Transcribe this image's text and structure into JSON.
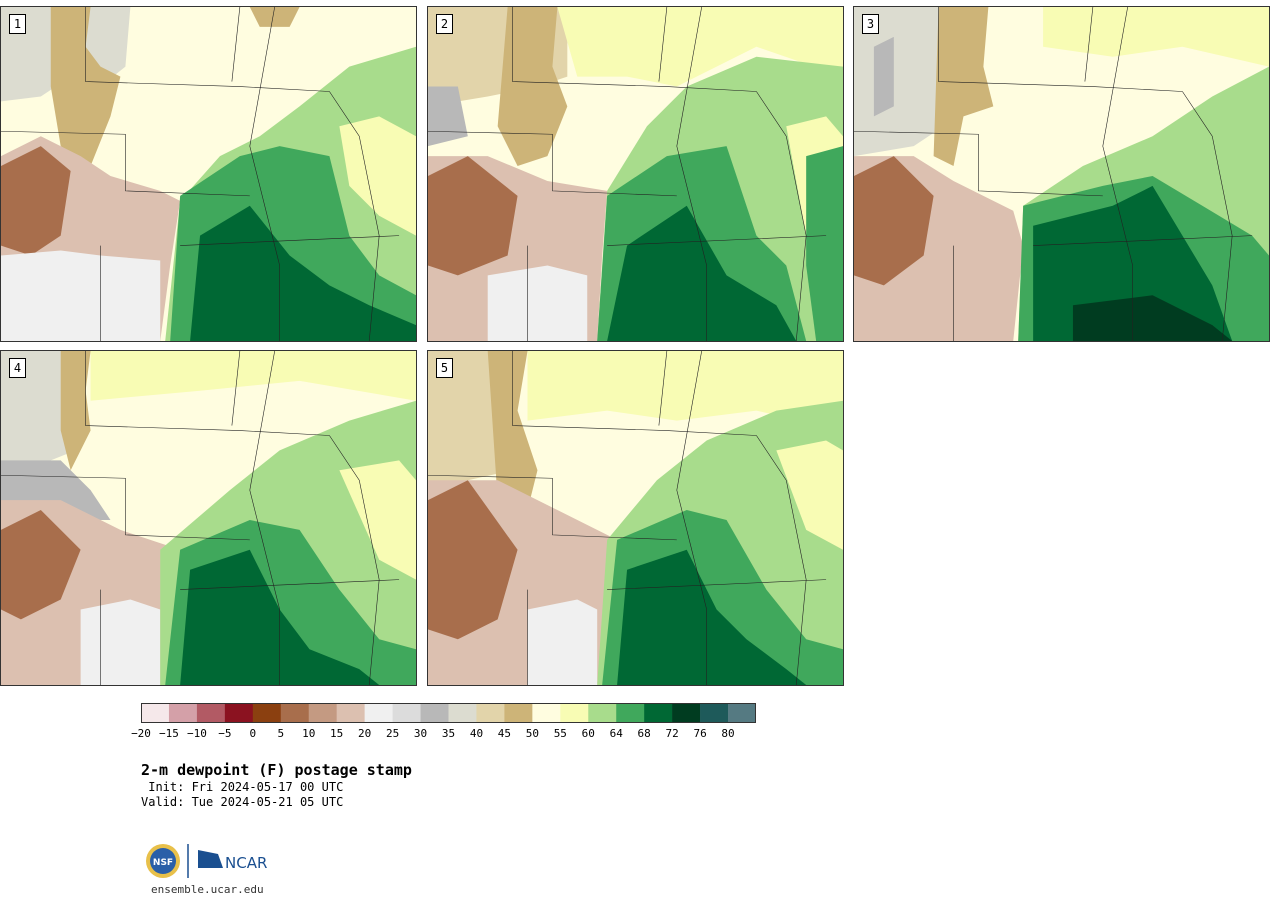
{
  "panels": [
    {
      "label": "1"
    },
    {
      "label": "2"
    },
    {
      "label": "3"
    },
    {
      "label": "4"
    },
    {
      "label": "5"
    }
  ],
  "colorbar": {
    "colors": [
      "#f5e8ea",
      "#d4a0a8",
      "#b25a64",
      "#8b1220",
      "#8b4010",
      "#a86e4c",
      "#c49a82",
      "#dcc0b0",
      "#f0f0f0",
      "#dcdcdc",
      "#b8b8b8",
      "#dcdcd0",
      "#e2d4aa",
      "#cdb478",
      "#fffde0",
      "#f8fcb4",
      "#a8dc8c",
      "#40a85c",
      "#006834",
      "#003c20",
      "#1e5a5a",
      "#557a82"
    ],
    "ticks": [
      "−20",
      "−15",
      "−10",
      "−5",
      "0",
      "5",
      "10",
      "15",
      "20",
      "25",
      "30",
      "35",
      "40",
      "45",
      "50",
      "55",
      "60",
      "64",
      "68",
      "72",
      "76",
      "80"
    ]
  },
  "title": "2-m dewpoint (F) postage stamp",
  "init": " Init: Fri 2024-05-17 00 UTC",
  "valid": "Valid: Tue 2024-05-21 05 UTC",
  "logo": {
    "nsf_text": "NSF",
    "ncar_text": "NCAR"
  },
  "site": "ensemble.ucar.edu"
}
